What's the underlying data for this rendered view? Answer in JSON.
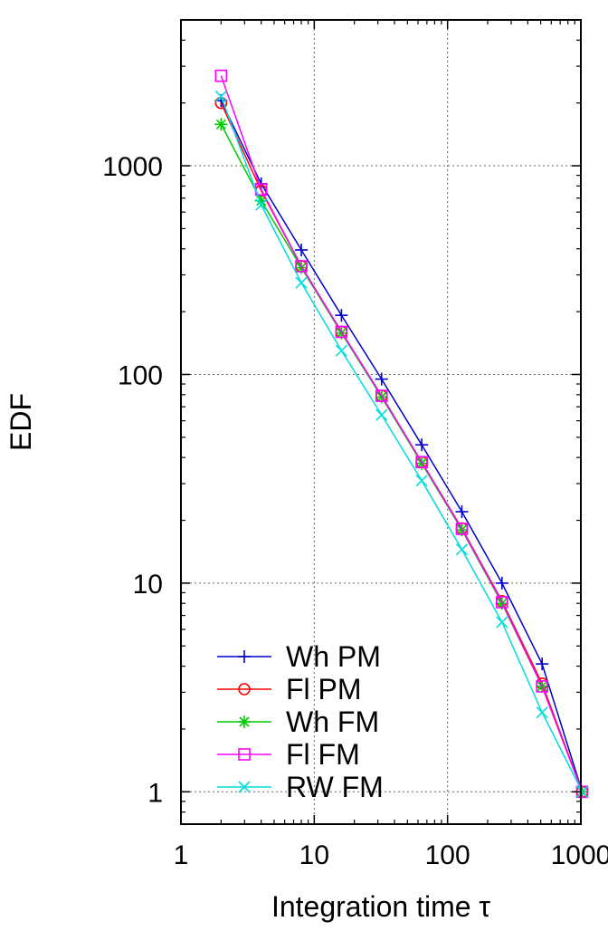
{
  "chart_data": {
    "type": "line",
    "title": "",
    "xlabel": "Integration time τ",
    "ylabel": "EDF",
    "xscale": "log",
    "yscale": "log",
    "xlim": [
      1,
      1000
    ],
    "ylim": [
      0.7,
      5000
    ],
    "xticks": [
      "1",
      "10",
      "100",
      "1000"
    ],
    "yticks": [
      "1",
      "10",
      "100",
      "1000"
    ],
    "grid": true,
    "legend_position": "bottom-left",
    "x": [
      2,
      4,
      8,
      16,
      32,
      64,
      128,
      256,
      512,
      1024
    ],
    "series": [
      {
        "name": "Wh PM",
        "color": "#0000cc",
        "marker": "plus",
        "values": [
          2050,
          820,
          395,
          192,
          95,
          46,
          22,
          10,
          4.1,
          1
        ]
      },
      {
        "name": "Fl PM",
        "color": "#ff0000",
        "marker": "circle",
        "values": [
          2000,
          760,
          330,
          160,
          79,
          38,
          18.3,
          8.2,
          3.3,
          1
        ]
      },
      {
        "name": "Wh FM",
        "color": "#00cc00",
        "marker": "asterisk",
        "values": [
          1580,
          680,
          325,
          158,
          78,
          37.5,
          18,
          8,
          3.2,
          1
        ]
      },
      {
        "name": "Fl FM",
        "color": "#ff00ff",
        "marker": "square",
        "values": [
          2700,
          770,
          330,
          160,
          79,
          38,
          18.2,
          8.1,
          3.2,
          1
        ]
      },
      {
        "name": "RW FM",
        "color": "#00dddd",
        "marker": "cross",
        "values": [
          2150,
          650,
          275,
          130,
          64,
          31,
          14.5,
          6.5,
          2.4,
          1
        ]
      }
    ]
  }
}
